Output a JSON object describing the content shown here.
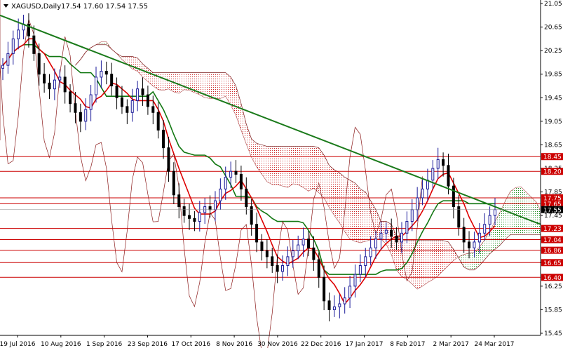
{
  "chart_data": {
    "type": "candlestick",
    "header": {
      "symbol": "XAGUSD,Daily",
      "ohlc": "17.54 17.60 17.54 17.55"
    },
    "y_axis": {
      "ylim": [
        15.45,
        21.05
      ],
      "ticks": [
        "21.05",
        "20.65",
        "20.25",
        "19.85",
        "19.45",
        "19.05",
        "18.65",
        "18.25",
        "17.85",
        "17.45",
        "17.05",
        "16.65",
        "16.25",
        "15.85",
        "15.45"
      ]
    },
    "x_axis": {
      "ticks": [
        "19 Jul 2016",
        "10 Aug 2016",
        "1 Sep 2016",
        "23 Sep 2016",
        "17 Oct 2016",
        "8 Nov 2016",
        "30 Nov 2016",
        "22 Dec 2016",
        "17 Jan 2017",
        "8 Feb 2017",
        "2 Mar 2017",
        "24 Mar 2017"
      ]
    },
    "horizontal_levels": [
      {
        "label": "18.45",
        "value": 18.45,
        "color": "#cc0000",
        "text_color": "#ffffff"
      },
      {
        "label": "18.20",
        "value": 18.2,
        "color": "#cc0000",
        "text_color": "#ffffff"
      },
      {
        "label": "17.75",
        "value": 17.75,
        "color": "#cc0000",
        "text_color": "#ffffff"
      },
      {
        "label": "17.65",
        "value": 17.65,
        "color": "#cc0000",
        "text_color": "#ffffff"
      },
      {
        "label": "17.23",
        "value": 17.23,
        "color": "#cc0000",
        "text_color": "#ffffff"
      },
      {
        "label": "17.04",
        "value": 17.04,
        "color": "#cc0000",
        "text_color": "#ffffff"
      },
      {
        "label": "16.86",
        "value": 16.86,
        "color": "#cc0000",
        "text_color": "#ffffff"
      },
      {
        "label": "16.65",
        "value": 16.65,
        "color": "#cc0000",
        "text_color": "#ffffff"
      },
      {
        "label": "16.40",
        "value": 16.4,
        "color": "#cc0000",
        "text_color": "#ffffff"
      }
    ],
    "current_price": {
      "label": "17.55",
      "value": 17.55
    },
    "trendline": {
      "color": "#1a7a1a",
      "start_value": 20.85,
      "end_value": 17.3
    },
    "candles_color": {
      "up": "#1a1a99",
      "down": "#000000"
    },
    "ichimoku": {
      "tenkan_color": "#dd0000",
      "kijun_color": "#117711",
      "chikou_color": "#8b1a1a",
      "cloud_bull_color": "#1a8a1a",
      "cloud_bear_color": "#cc2222"
    },
    "approx_closes": [
      20.0,
      20.2,
      20.45,
      20.6,
      20.7,
      20.5,
      20.2,
      19.85,
      19.7,
      19.6,
      19.75,
      19.8,
      19.55,
      19.35,
      19.2,
      19.05,
      19.25,
      19.5,
      19.8,
      19.9,
      19.85,
      19.65,
      19.45,
      19.3,
      19.2,
      19.4,
      19.6,
      19.5,
      19.3,
      19.2,
      18.9,
      18.6,
      18.2,
      17.8,
      17.6,
      17.45,
      17.4,
      17.35,
      17.5,
      17.6,
      17.55,
      17.7,
      17.9,
      18.1,
      18.2,
      18.15,
      17.9,
      17.6,
      17.3,
      17.0,
      16.85,
      16.75,
      16.6,
      16.5,
      16.6,
      16.75,
      16.85,
      16.95,
      17.05,
      16.9,
      16.7,
      16.4,
      16.0,
      15.85,
      15.9,
      15.95,
      16.05,
      16.25,
      16.45,
      16.6,
      16.75,
      16.9,
      17.05,
      17.15,
      17.2,
      17.1,
      17.0,
      17.15,
      17.35,
      17.55,
      17.75,
      17.9,
      18.05,
      18.25,
      18.4,
      18.3,
      17.95,
      17.6,
      17.25,
      17.0,
      16.9,
      17.0,
      17.15,
      17.3,
      17.45,
      17.55
    ]
  }
}
